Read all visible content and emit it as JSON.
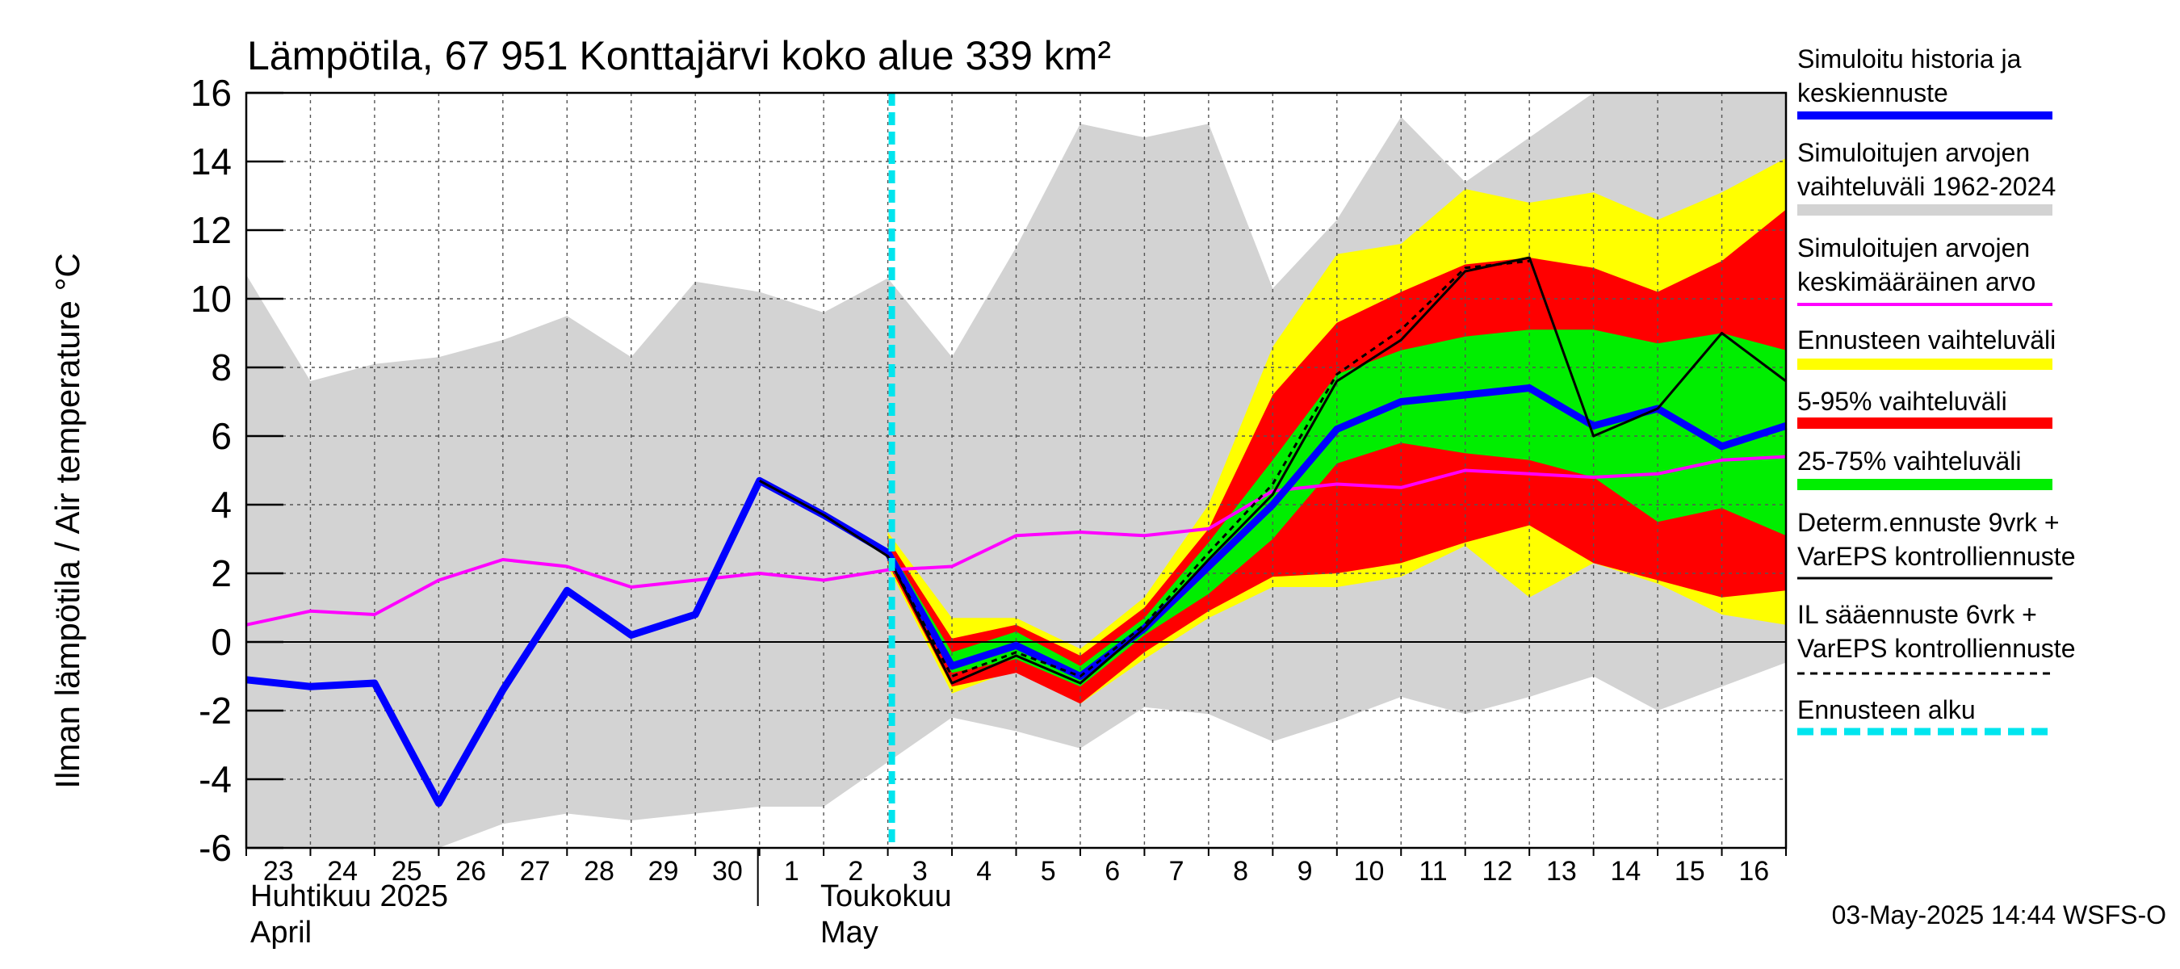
{
  "chart_data": {
    "type": "line",
    "title": "Lämpötila, 67 951 Konttajärvi koko alue 339 km²",
    "ylabel": "Ilman lämpötila / Air temperature   °C",
    "ylim": [
      -6,
      16
    ],
    "yticks": [
      -6,
      -4,
      -2,
      0,
      2,
      4,
      6,
      8,
      10,
      12,
      14,
      16
    ],
    "x_start": "2025-04-23",
    "x_end": "2025-05-17",
    "day_labels": [
      {
        "d": 0,
        "t": "23"
      },
      {
        "d": 1,
        "t": "24"
      },
      {
        "d": 2,
        "t": "25"
      },
      {
        "d": 3,
        "t": "26"
      },
      {
        "d": 4,
        "t": "27"
      },
      {
        "d": 5,
        "t": "28"
      },
      {
        "d": 6,
        "t": "29"
      },
      {
        "d": 7,
        "t": "30"
      },
      {
        "d": 8,
        "t": "1"
      },
      {
        "d": 9,
        "t": "2"
      },
      {
        "d": 10,
        "t": "3"
      },
      {
        "d": 11,
        "t": "4"
      },
      {
        "d": 12,
        "t": "5"
      },
      {
        "d": 13,
        "t": "6"
      },
      {
        "d": 14,
        "t": "7"
      },
      {
        "d": 15,
        "t": "8"
      },
      {
        "d": 16,
        "t": "9"
      },
      {
        "d": 17,
        "t": "10"
      },
      {
        "d": 18,
        "t": "11"
      },
      {
        "d": 19,
        "t": "12"
      },
      {
        "d": 20,
        "t": "13"
      },
      {
        "d": 21,
        "t": "14"
      },
      {
        "d": 22,
        "t": "15"
      },
      {
        "d": 23,
        "t": "16"
      }
    ],
    "month_labels": {
      "april_fi": "Huhtikuu  2025",
      "april_en": "April",
      "may_fi": "Toukokuu",
      "may_en": "May"
    },
    "forecast_start_day": 10,
    "series": [
      {
        "name": "Simuloitujen arvojen vaihteluväli 1962-2024",
        "kind": "band",
        "color": "#d3d3d3",
        "x": [
          0,
          1,
          2,
          3,
          4,
          5,
          6,
          7,
          8,
          9,
          10,
          11,
          12,
          13,
          14,
          15,
          16,
          17,
          18,
          19,
          20,
          21,
          22,
          23,
          24
        ],
        "upper": [
          10.7,
          7.6,
          8.1,
          8.3,
          8.8,
          9.5,
          8.3,
          10.5,
          10.2,
          9.6,
          10.6,
          8.3,
          11.5,
          15.1,
          14.7,
          15.1,
          10.3,
          12.3,
          15.3,
          13.4,
          14.7,
          16.0,
          16.0,
          16.0,
          16.0
        ],
        "lower": [
          -6.0,
          -6.0,
          -6.0,
          -6.0,
          -5.3,
          -5.0,
          -5.2,
          -5.0,
          -4.8,
          -4.8,
          -3.5,
          -2.2,
          -2.6,
          -3.1,
          -1.9,
          -2.1,
          -2.9,
          -2.3,
          -1.6,
          -2.1,
          -1.6,
          -1.0,
          -2.0,
          -1.3,
          -0.6
        ]
      },
      {
        "name": "Ennusteen vaihteluväli",
        "kind": "band",
        "color": "#ffff00",
        "x": [
          10,
          11,
          12,
          13,
          14,
          15,
          16,
          17,
          18,
          19,
          20,
          21,
          22,
          23,
          24
        ],
        "upper": [
          3.2,
          0.7,
          0.7,
          -0.2,
          1.3,
          4.0,
          8.6,
          11.3,
          11.6,
          13.2,
          12.8,
          13.1,
          12.3,
          13.1,
          14.1
        ],
        "lower": [
          2.2,
          -1.5,
          -0.8,
          -1.8,
          -0.5,
          0.7,
          1.6,
          1.6,
          1.9,
          2.8,
          1.3,
          2.3,
          1.7,
          0.8,
          0.5
        ]
      },
      {
        "name": "5-95% vaihteluväli",
        "kind": "band",
        "color": "#ff0000",
        "x": [
          10,
          11,
          12,
          13,
          14,
          15,
          16,
          17,
          18,
          19,
          20,
          21,
          22,
          23,
          24
        ],
        "upper": [
          3.0,
          0.1,
          0.5,
          -0.4,
          1.0,
          3.3,
          7.2,
          9.3,
          10.2,
          11.0,
          11.2,
          10.9,
          10.2,
          11.1,
          12.6
        ],
        "lower": [
          2.3,
          -1.3,
          -0.9,
          -1.8,
          -0.3,
          0.9,
          1.9,
          2.0,
          2.3,
          2.9,
          3.4,
          2.3,
          1.8,
          1.3,
          1.5
        ]
      },
      {
        "name": "25-75% vaihteluväli",
        "kind": "band",
        "color": "#00ee00",
        "x": [
          10,
          11,
          12,
          13,
          14,
          15,
          16,
          17,
          18,
          19,
          20,
          21,
          22,
          23,
          24
        ],
        "upper": [
          2.8,
          -0.3,
          0.3,
          -0.7,
          0.7,
          2.9,
          5.3,
          7.8,
          8.5,
          8.9,
          9.1,
          9.1,
          8.7,
          9.0,
          8.5
        ],
        "lower": [
          2.5,
          -0.9,
          -0.5,
          -1.3,
          0.2,
          1.4,
          3.0,
          5.2,
          5.8,
          5.5,
          5.3,
          4.8,
          3.5,
          3.9,
          3.1
        ]
      },
      {
        "name": "Simuloitujen arvojen keskimääräinen arvo",
        "kind": "line",
        "color": "#ff00ff",
        "x": [
          0,
          1,
          2,
          3,
          4,
          5,
          6,
          7,
          8,
          9,
          10,
          11,
          12,
          13,
          14,
          15,
          16,
          17,
          18,
          19,
          20,
          21,
          22,
          23,
          24
        ],
        "y": [
          0.5,
          0.9,
          0.8,
          1.8,
          2.4,
          2.2,
          1.6,
          1.8,
          2.0,
          1.8,
          2.1,
          2.2,
          3.1,
          3.2,
          3.1,
          3.3,
          4.4,
          4.6,
          4.5,
          5.0,
          4.9,
          4.8,
          4.9,
          5.3,
          5.4
        ]
      },
      {
        "name": "Simuloitu historia ja keskiennuste",
        "kind": "line",
        "color": "#0000ff",
        "x": [
          0,
          1,
          2,
          3,
          4,
          5,
          6,
          7,
          8,
          9,
          10,
          11,
          12,
          13,
          14,
          15,
          16,
          17,
          18,
          19,
          20,
          21,
          22,
          23,
          24
        ],
        "y": [
          -1.1,
          -1.3,
          -1.2,
          -4.7,
          -1.4,
          1.5,
          0.2,
          0.8,
          4.7,
          3.7,
          2.6,
          -0.7,
          -0.1,
          -1.0,
          0.4,
          2.2,
          4.0,
          6.2,
          7.0,
          7.2,
          7.4,
          6.3,
          6.8,
          5.7,
          6.3
        ]
      },
      {
        "name": "Determ.ennuste 9vrk + VarEPS kontrolliennuste",
        "kind": "line",
        "color": "#000000",
        "x": [
          8,
          9,
          10,
          11,
          12,
          13,
          14,
          15,
          16,
          17,
          18,
          19,
          20,
          21,
          22,
          23,
          24
        ],
        "y": [
          4.7,
          3.7,
          2.5,
          -1.2,
          -0.4,
          -1.2,
          0.4,
          2.4,
          4.3,
          7.6,
          8.8,
          10.8,
          11.2,
          6.0,
          6.8,
          9.0,
          7.6
        ]
      },
      {
        "name": "IL sääennuste 6vrk + VarEPS kontrolliennuste",
        "kind": "line",
        "color": "#000000",
        "x": [
          10,
          11,
          12,
          13,
          14,
          15,
          16,
          17,
          18,
          19,
          20
        ],
        "y": [
          2.5,
          -1.0,
          -0.3,
          -1.0,
          0.5,
          2.6,
          4.6,
          7.8,
          9.1,
          10.9,
          11.1
        ]
      },
      {
        "name": "Ennusteen alku",
        "kind": "vline",
        "color": "#00e5ee",
        "x": 10
      }
    ]
  },
  "legend": {
    "blue_1": "Simuloitu historia ja",
    "blue_2": "keskiennuste",
    "gray_1": "Simuloitujen arvojen",
    "gray_2": "vaihteluväli 1962-2024",
    "mag_1": "Simuloitujen arvojen",
    "mag_2": "keskimääräinen arvo",
    "yellow_1": "Ennusteen vaihteluväli",
    "red_1": "5-95% vaihteluväli",
    "green_1": "25-75% vaihteluväli",
    "det_1": "Determ.ennuste 9vrk +",
    "det_2": "VarEPS kontrolliennuste",
    "il_1": "IL sääennuste 6vrk  +",
    "il_2": "  VarEPS kontrolliennuste",
    "start_1": "Ennusteen alku"
  },
  "footer": {
    "timestamp": "03-May-2025 14:44 WSFS-O"
  }
}
